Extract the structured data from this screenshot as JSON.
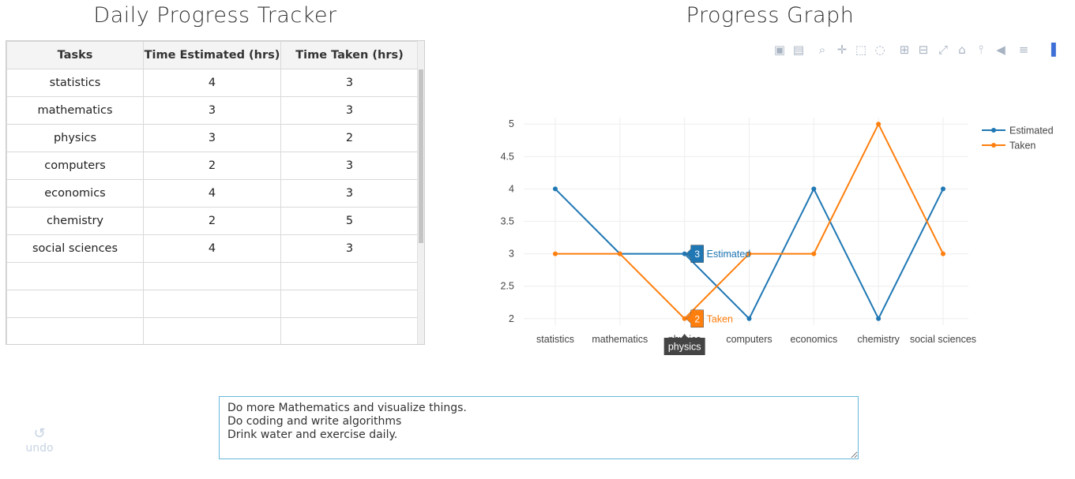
{
  "titles": {
    "tracker": "Daily Progress Tracker",
    "graph": "Progress Graph"
  },
  "table": {
    "headers": [
      "Tasks",
      "Time Estimated (hrs)",
      "Time Taken (hrs)"
    ],
    "rows": [
      [
        "statistics",
        "4",
        "3"
      ],
      [
        "mathematics",
        "3",
        "3"
      ],
      [
        "physics",
        "3",
        "2"
      ],
      [
        "computers",
        "2",
        "3"
      ],
      [
        "economics",
        "4",
        "3"
      ],
      [
        "chemistry",
        "2",
        "5"
      ],
      [
        "social sciences",
        "4",
        "3"
      ],
      [
        "",
        "",
        ""
      ],
      [
        "",
        "",
        ""
      ],
      [
        "",
        "",
        ""
      ]
    ]
  },
  "modebar": [
    "camera-icon",
    "save-icon",
    "zoom-icon",
    "pan-icon",
    "box-select-icon",
    "lasso-icon",
    "zoom-in-icon",
    "zoom-out-icon",
    "autoscale-icon",
    "reset-axes-icon",
    "spike-lines-icon",
    "hover-closest-icon",
    "hover-compare-icon",
    "plotly-logo-icon"
  ],
  "chart_data": {
    "type": "line",
    "categories": [
      "statistics",
      "mathematics",
      "physics",
      "computers",
      "economics",
      "chemistry",
      "social sciences"
    ],
    "series": [
      {
        "name": "Estimated",
        "color": "#1f77b4",
        "values": [
          4,
          3,
          3,
          2,
          4,
          2,
          4
        ]
      },
      {
        "name": "Taken",
        "color": "#ff7f0e",
        "values": [
          3,
          3,
          2,
          3,
          3,
          5,
          3
        ]
      }
    ],
    "yticks": [
      "2",
      "2.5",
      "3",
      "3.5",
      "4",
      "4.5",
      "5"
    ],
    "ylim": [
      1.9,
      5.1
    ],
    "grid": true,
    "legend_position": "top-right",
    "hover": {
      "category": "physics",
      "category_index": 2,
      "labels": [
        {
          "series": "Estimated",
          "value": "3",
          "color": "#1f77b4"
        },
        {
          "series": "Taken",
          "value": "2",
          "color": "#ff7f0e"
        }
      ]
    }
  },
  "notes": {
    "text": "Do more Mathematics and visualize things.\nDo coding and write algorithms\nDrink water and exercise daily."
  },
  "undo": {
    "label": "undo",
    "icon": "undo-icon"
  }
}
